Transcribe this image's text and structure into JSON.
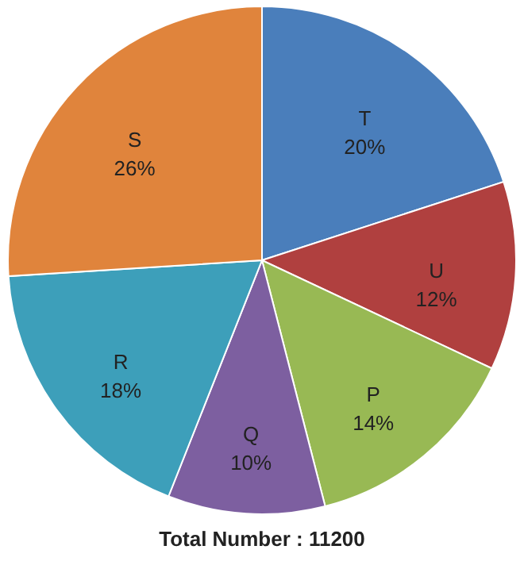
{
  "chart_data": {
    "type": "pie",
    "categories": [
      "T",
      "U",
      "P",
      "Q",
      "R",
      "S"
    ],
    "values": [
      20,
      12,
      14,
      10,
      18,
      26
    ],
    "value_labels": [
      "20%",
      "12%",
      "14%",
      "10%",
      "18%",
      "26%"
    ],
    "colors": [
      "#4a7ebb",
      "#b0403f",
      "#98b954",
      "#7d5fa0",
      "#3d9fba",
      "#e0843c"
    ],
    "annotations": [
      "Total Number : 11200"
    ]
  }
}
